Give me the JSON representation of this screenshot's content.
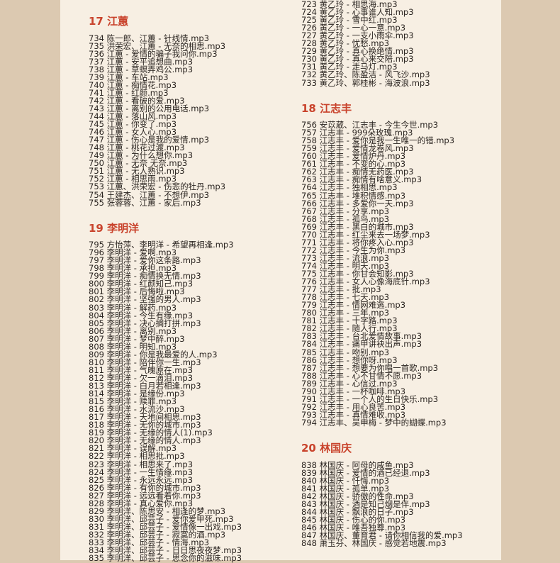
{
  "columns": [
    {
      "sections": [
        {
          "heading": "17 江蕙",
          "items": [
            "734 陈一郎、江蕙 - 针线情.mp3",
            "735 洪荣宏、江蕙 - 无奈的相思.mp3",
            "736 江蕙 - 爱情的骗子我问你.mp3",
            "737 江蕙 - 安平追想曲.mp3",
            "738 江蕙 - 草螟弄鸡公.mp3",
            "739 江蕙 - 车站.mp3",
            "740 江蕙 - 痴情花.mp3",
            "741 江蕙 - 红颜.mp3",
            "742 江蕙 - 看破的爱.mp3",
            "743 江蕙 - 离别的公用电话.mp3",
            "744 江蕙 - 落山风.mp3",
            "745 江蕙 - 你变了.mp3",
            "746 江蕙 - 女人心.mp3",
            "747 江蕙 - 伤心是我的爱情.mp3",
            "748 江蕙 - 桃花过渡.mp3",
            "749 江蕙 - 为什么想你.mp3",
            "750 江蕙 - 无奈 无奈.mp3",
            "751 江蕙 - 无人熟识.mp3",
            "752 江蕙 - 相思雨.mp3",
            "753 江蕙、洪荣宏 - 伤悲的牡丹.mp3",
            "754 王建杰、江蕙 - 不想伊.mp3",
            "755 张蓉蓉、江蕙 - 家后.mp3"
          ]
        },
        {
          "heading": "19 李明洋",
          "items": [
            "795 方怡萍、李明洋 - 希望再相逢.mp3",
            "796 李明洋 - 爱啊.mp3",
            "797 李明洋 - 爱你这条路.mp3",
            "798 李明洋 - 承担.mp3",
            "799 李明洋 - 痴情换无情.mp3",
            "800 李明洋 - 红颜知己.mp3",
            "801 李明洋 - 后悔啦.mp3",
            "802 李明洋 - 坚强的男人.mp3",
            "803 李明洋 - 解药.mp3",
            "804 李明洋 - 今生有缘.mp3",
            "805 李明洋 - 决心搁打拼.mp3",
            "806 李明洋 - 离别.mp3",
            "807 李明洋 - 梦中醉.mp3",
            "808 李明洋 - 明知.mp3",
            "809 李明洋 - 你是我最爱的人.mp3",
            "810 李明洋 - 陪伴你一生.mp3",
            "811 李明洋 - 气魄原在.mp3",
            "812 李明洋 - 欠一滴泪.mp3",
            "813 李明洋 - 白月若相逢.mp3",
            "814 李明洋 - 是缘份.mp3",
            "815 李明洋 - 赎罪.mp3",
            "816 李明洋 - 水流沙.mp3",
            "817 李明洋 - 天地间相思.mp3",
            "818 李明洋 - 无你的城市.mp3",
            "819 李明洋 - 无缘的情人(1).mp3",
            "820 李明洋 - 无缘的情人.mp3",
            "821 李明洋 - 误解.mp3",
            "822 李明洋 - 相思批.mp3",
            "823 李明洋 - 相思来了.mp3",
            "824 李明洋 - 一生情缘.mp3",
            "825 李明洋 - 永远永远.mp3",
            "826 李明洋 - 有你的城市.mp3",
            "827 李明洋 - 远远看着你.mp3",
            "828 李明洋 - 真心爱你.mp3",
            "829 李明洋、陈思安 - 相逢的梦.mp3",
            "830 李明洋、邱芸子 - 爱你爱甲死.mp3",
            "831 李明洋、邱芸子 - 爱情像一出戏.mp3",
            "832 李明洋、邱芸子 - 寂寞的酒.mp3",
            "833 李明洋、邱芸子 - 情海.mp3",
            "834 李明洋、邱芸子 - 日日思夜夜梦.mp3",
            "835 李明洋、邱芸子 - 思念你的滋味.mp3"
          ]
        }
      ]
    },
    {
      "sections": [
        {
          "items": [
            "723 黄乙玲 - 相思海.mp3",
            "724 黄乙玲 - 心事谁人知.mp3",
            "725 黄乙玲 - 雪中红.mp3",
            "726 黄乙玲 - 一心一意.mp3",
            "727 黄乙玲 - 一支小雨伞.mp3",
            "728 黄乙玲 - 忧愁.mp3",
            "729 黄乙玲 - 真心换绝情.mp3",
            "730 黄乙玲 - 真心来交陪.mp3",
            "731 黄乙玲 - 走马灯.mp3",
            "732 黄乙玲、陈盈洁 - 风飞沙.mp3",
            "733 黄乙玲、郭桂彬 - 海波浪.mp3"
          ]
        },
        {
          "heading": "18 江志丰",
          "items": [
            "756 安苡葳、江志丰 - 今生今世.mp3",
            "757 江志丰 - 999朵玫瑰.mp3",
            "758 江志丰 - 爱你是我一生唯一的错.mp3",
            "759 江志丰 - 爱情龙卷风.mp3",
            "760 江志丰 - 爱情炉丹.mp3",
            "761 江志丰 - 不变的心.mp3",
            "762 江志丰 - 痴情无药医.mp3",
            "763 江志丰 - 痴情有啥意义.mp3",
            "764 江志丰 - 独相思.mp3",
            "765 江志丰 - 堆积情感.mp3",
            "766 江志丰 - 多爱你一天.mp3",
            "767 江志丰 - 分享.mp3",
            "768 江志丰 - 孤鸟.mp3",
            "769 江志丰 - 黑白的城市.mp3",
            "770 江志丰 - 红尘来去一场梦.mp3",
            "771 江志丰 - 将你疼入心.mp3",
            "772 江志丰 - 今生为你.mp3",
            "773 江志丰 - 流浪.mp3",
            "774 江志丰 - 明天.mp3",
            "775 江志丰 - 你甘会知影.mp3",
            "776 江志丰 - 女人心像海底针.mp3",
            "777 江志丰 - 批.mp3",
            "778 江志丰 - 七天.mp3",
            "779 江志丰 - 情网难逃.mp3",
            "780 江志丰 - 三年.mp3",
            "781 江志丰 - 十字路.mp3",
            "782 江志丰 - 随人行.mp3",
            "783 江志丰 - 台北爱情故事.mp3",
            "784 江志丰 - 痛甲讲袂出声.mp3",
            "785 江志丰 - 吻别.mp3",
            "786 江志丰 - 想你呀.mp3",
            "787 江志丰 - 想要为你唱一首歌.mp3",
            "788 江志丰 - 心不甘情不愿.mp3",
            "789 江志丰 - 心信过.mp3",
            "790 江志丰 - 一杯咖啡.mp3",
            "791 江志丰 - 一个人的生日快乐.mp3",
            "792 江志丰 - 用心良苦.mp3",
            "793 江志丰 - 真情难收.mp3",
            "794 江志丰、吴申梅 - 梦中的蝴蝶.mp3"
          ]
        },
        {
          "heading": "20 林国庆",
          "items": [
            "838 林国庆 - 阿母的咸鱼.mp3",
            "839 林国庆 - 爱情的酒已经退.mp3",
            "840 林国庆 - 忏悔.mp3",
            "841 林国庆 - 孤单.mp3",
            "842 林国庆 - 骄傲的性命.mp3",
            "843 林国庆 - 酒是知己烟是伴.mp3",
            "844 林国庆 - 飘浪的日子.mp3",
            "845 林国庆 - 伤心的你.mp3",
            "846 林国庆 - 唯吾独尊.mp3",
            "847 林国庆、董育君 - 请你相信我的爱.mp3",
            "848 萧玉芬、林国庆 - 感觉若地震.mp3"
          ]
        }
      ]
    }
  ]
}
